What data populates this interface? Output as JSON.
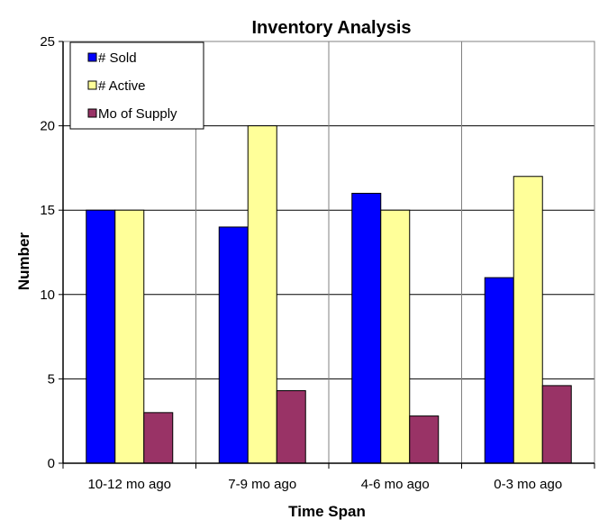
{
  "chart_data": {
    "type": "bar",
    "title": "Inventory Analysis",
    "xlabel": "Time Span",
    "ylabel": "Number",
    "categories": [
      "10-12 mo ago",
      "7-9 mo ago",
      "4-6 mo ago",
      "0-3 mo ago"
    ],
    "series": [
      {
        "name": "# Sold",
        "values": [
          15,
          14,
          16,
          11
        ],
        "color": "#0000FF"
      },
      {
        "name": "# Active",
        "values": [
          15,
          20,
          15,
          17
        ],
        "color": "#FFFF99"
      },
      {
        "name": "Mo of Supply",
        "values": [
          3.0,
          4.3,
          2.8,
          4.6
        ],
        "color": "#993366"
      }
    ],
    "ylim": [
      0,
      25
    ],
    "yticks": [
      0,
      5,
      10,
      15,
      20,
      25
    ],
    "grid": true,
    "legend_position": "top-left"
  }
}
